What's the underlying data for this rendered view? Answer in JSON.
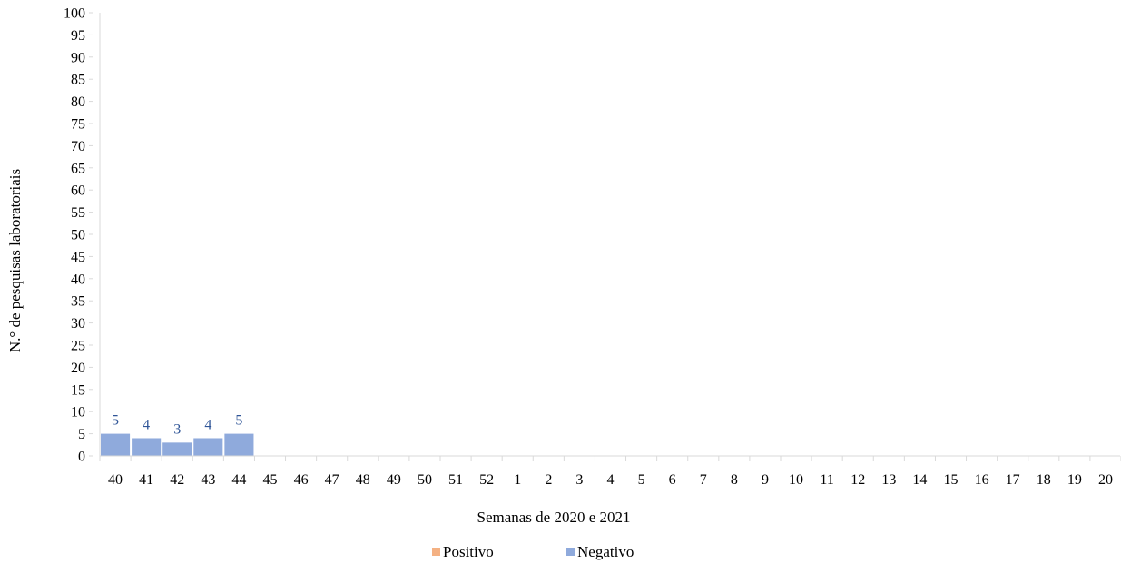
{
  "chart_data": {
    "type": "bar",
    "stacked": true,
    "title": "",
    "xlabel": "Semanas de 2020 e 2021",
    "ylabel": "N.° de pesquisas laboratoriais",
    "ylim": [
      0,
      100
    ],
    "yticks": [
      0,
      5,
      10,
      15,
      20,
      25,
      30,
      35,
      40,
      45,
      50,
      55,
      60,
      65,
      70,
      75,
      80,
      85,
      90,
      95,
      100
    ],
    "grid": false,
    "legend_position": "bottom",
    "categories": [
      "40",
      "41",
      "42",
      "43",
      "44",
      "45",
      "46",
      "47",
      "48",
      "49",
      "50",
      "51",
      "52",
      "1",
      "2",
      "3",
      "4",
      "5",
      "6",
      "7",
      "8",
      "9",
      "10",
      "11",
      "12",
      "13",
      "14",
      "15",
      "16",
      "17",
      "18",
      "19",
      "20"
    ],
    "series": [
      {
        "name": "Positivo",
        "color": "#F4B183",
        "values": [
          0,
          0,
          0,
          0,
          0,
          0,
          0,
          0,
          0,
          0,
          0,
          0,
          0,
          0,
          0,
          0,
          0,
          0,
          0,
          0,
          0,
          0,
          0,
          0,
          0,
          0,
          0,
          0,
          0,
          0,
          0,
          0,
          0
        ]
      },
      {
        "name": "Negativo",
        "color": "#8FAADC",
        "values": [
          5,
          4,
          3,
          4,
          5,
          0,
          0,
          0,
          0,
          0,
          0,
          0,
          0,
          0,
          0,
          0,
          0,
          0,
          0,
          0,
          0,
          0,
          0,
          0,
          0,
          0,
          0,
          0,
          0,
          0,
          0,
          0,
          0
        ]
      }
    ],
    "data_labels": [
      "5",
      "4",
      "3",
      "4",
      "5",
      "",
      "",
      "",
      "",
      "",
      "",
      "",
      "",
      "",
      "",
      "",
      "",
      "",
      "",
      "",
      "",
      "",
      "",
      "",
      "",
      "",
      "",
      "",
      "",
      "",
      "",
      "",
      ""
    ]
  }
}
